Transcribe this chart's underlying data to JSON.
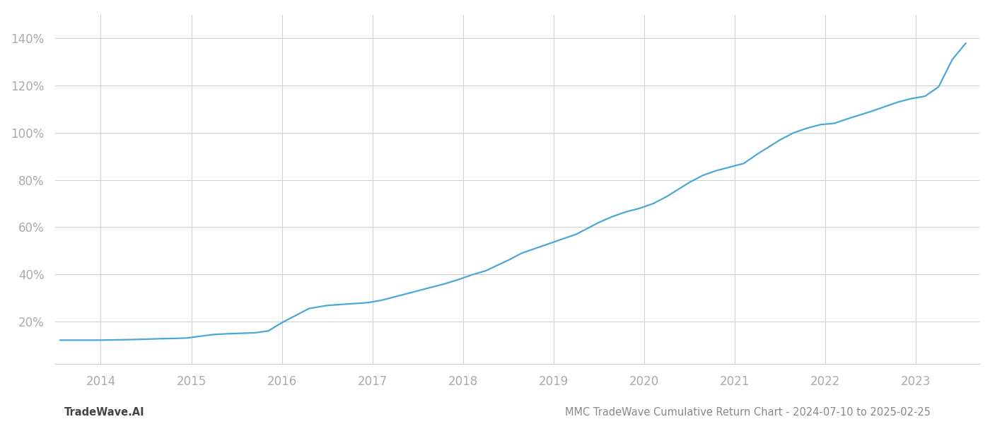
{
  "title": "",
  "footer_left": "TradeWave.AI",
  "footer_right": "MMC TradeWave Cumulative Return Chart - 2024-07-10 to 2025-02-25",
  "line_color": "#4aa8d8",
  "line_width": 1.6,
  "background_color": "#ffffff",
  "grid_color": "#d0d0d0",
  "tick_label_color": "#aaaaaa",
  "footer_color": "#888888",
  "xlim": [
    2013.5,
    2023.7
  ],
  "ylim_low": 0.02,
  "ylim_high": 1.5,
  "ytick_vals": [
    0.2,
    0.4,
    0.6,
    0.8,
    1.0,
    1.2,
    1.4
  ],
  "xticks": [
    2014,
    2015,
    2016,
    2017,
    2018,
    2019,
    2020,
    2021,
    2022,
    2023
  ],
  "x": [
    2013.55,
    2013.7,
    2013.85,
    2014.0,
    2014.15,
    2014.3,
    2014.5,
    2014.65,
    2014.8,
    2014.95,
    2015.05,
    2015.15,
    2015.25,
    2015.4,
    2015.55,
    2015.7,
    2015.85,
    2016.0,
    2016.15,
    2016.3,
    2016.5,
    2016.65,
    2016.8,
    2016.95,
    2017.1,
    2017.25,
    2017.5,
    2017.65,
    2017.8,
    2017.95,
    2018.1,
    2018.25,
    2018.5,
    2018.65,
    2018.8,
    2018.95,
    2019.1,
    2019.25,
    2019.5,
    2019.65,
    2019.8,
    2019.95,
    2020.1,
    2020.25,
    2020.5,
    2020.65,
    2020.8,
    2020.95,
    2021.1,
    2021.25,
    2021.5,
    2021.65,
    2021.8,
    2021.95,
    2022.1,
    2022.25,
    2022.5,
    2022.65,
    2022.8,
    2022.95,
    2023.1,
    2023.25,
    2023.4,
    2023.55
  ],
  "y": [
    0.121,
    0.121,
    0.121,
    0.121,
    0.122,
    0.123,
    0.125,
    0.127,
    0.128,
    0.13,
    0.135,
    0.14,
    0.145,
    0.148,
    0.15,
    0.152,
    0.16,
    0.195,
    0.225,
    0.255,
    0.268,
    0.272,
    0.276,
    0.28,
    0.29,
    0.305,
    0.33,
    0.345,
    0.36,
    0.378,
    0.398,
    0.415,
    0.46,
    0.49,
    0.51,
    0.53,
    0.55,
    0.57,
    0.62,
    0.645,
    0.665,
    0.68,
    0.7,
    0.73,
    0.79,
    0.82,
    0.84,
    0.855,
    0.87,
    0.91,
    0.97,
    1.0,
    1.02,
    1.035,
    1.04,
    1.06,
    1.09,
    1.11,
    1.13,
    1.145,
    1.155,
    1.195,
    1.31,
    1.38
  ]
}
